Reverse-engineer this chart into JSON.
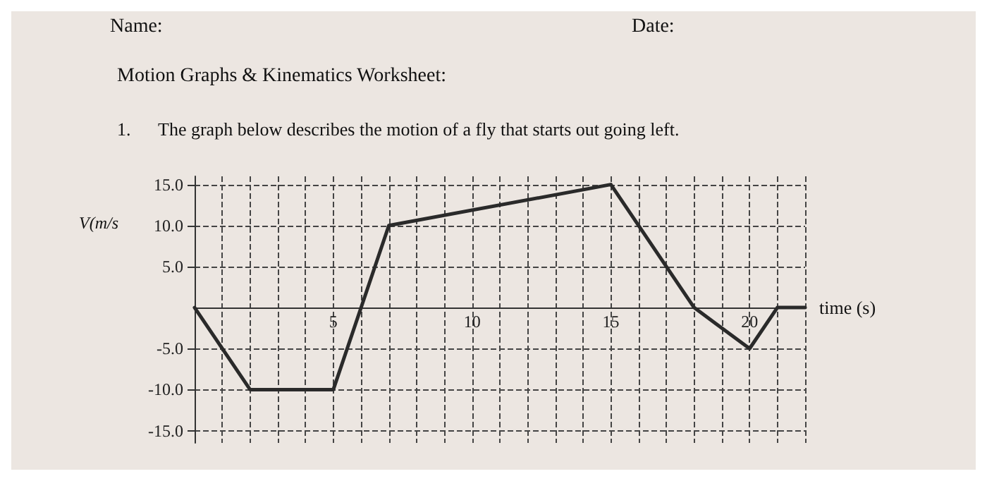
{
  "chart_data": {
    "type": "line",
    "title": "Motion Graphs & Kinematics Worksheet:",
    "subtitle": "1.      The graph below describes the motion of a fly that starts out going left.",
    "annotations": [
      "Name:",
      "Date:"
    ],
    "xlabel": "time (s)",
    "ylabel": "V(m/s",
    "x": [
      0,
      2,
      5,
      7,
      15,
      18,
      20,
      21,
      22
    ],
    "series": [
      {
        "color": "#2a2a2a",
        "values": [
          0,
          -10,
          -10,
          10,
          15,
          0,
          -5,
          0,
          0
        ]
      }
    ],
    "xlim": [
      0,
      22
    ],
    "xticks": [
      {
        "value": 0,
        "label": null
      },
      {
        "value": 1,
        "label": null
      },
      {
        "value": 2,
        "label": null
      },
      {
        "value": 3,
        "label": null
      },
      {
        "value": 4,
        "label": null
      },
      5,
      {
        "value": 6,
        "label": null
      },
      {
        "value": 7,
        "label": null
      },
      {
        "value": 8,
        "label": null
      },
      {
        "value": 9,
        "label": null
      },
      10,
      {
        "value": 11,
        "label": null
      },
      {
        "value": 12,
        "label": null
      },
      {
        "value": 13,
        "label": null
      },
      {
        "value": 14,
        "label": null
      },
      15,
      {
        "value": 16,
        "label": null
      },
      {
        "value": 17,
        "label": null
      },
      {
        "value": 18,
        "label": null
      },
      {
        "value": 19,
        "label": null
      },
      20,
      {
        "value": 21,
        "label": null
      },
      {
        "value": 22,
        "label": null
      }
    ],
    "ylim": [
      -16.5,
      16
    ],
    "yticks": [
      {
        "value": -15,
        "label": "-15.0"
      },
      {
        "value": -10,
        "label": "-10.0"
      },
      {
        "value": -5,
        "label": "-5.0"
      },
      {
        "value": 5,
        "label": "5.0"
      },
      {
        "value": 10,
        "label": "10.0"
      },
      {
        "value": 15,
        "label": "15.0"
      }
    ],
    "grid": true,
    "marker": "none",
    "line_style": "solid"
  }
}
